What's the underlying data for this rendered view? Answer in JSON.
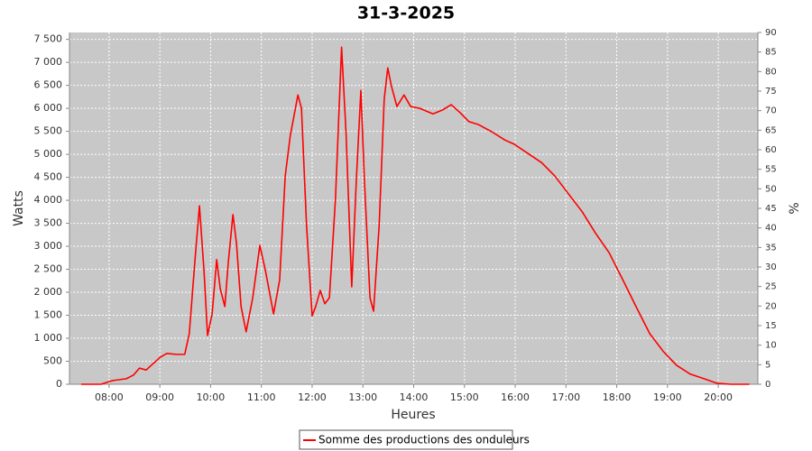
{
  "chart_data": {
    "type": "line",
    "title": "31-3-2025",
    "xlabel": "Heures",
    "ylabel": "Watts",
    "y2label": "%",
    "x": [
      7.45,
      7.84,
      8.07,
      8.34,
      8.48,
      8.6,
      8.73,
      9.01,
      9.14,
      9.32,
      9.49,
      9.58,
      9.69,
      9.78,
      9.87,
      9.94,
      10.03,
      10.12,
      10.19,
      10.28,
      10.35,
      10.44,
      10.51,
      10.6,
      10.7,
      10.83,
      10.97,
      11.08,
      11.24,
      11.36,
      11.47,
      11.57,
      11.72,
      11.79,
      11.89,
      12.0,
      12.07,
      12.16,
      12.25,
      12.34,
      12.46,
      12.58,
      12.67,
      12.78,
      12.87,
      12.96,
      13.03,
      13.14,
      13.21,
      13.32,
      13.42,
      13.49,
      13.56,
      13.67,
      13.81,
      13.94,
      14.12,
      14.38,
      14.56,
      14.74,
      14.92,
      15.09,
      15.27,
      15.54,
      15.8,
      15.98,
      16.25,
      16.52,
      16.78,
      17.05,
      17.32,
      17.58,
      17.85,
      18.12,
      18.38,
      18.65,
      18.92,
      19.18,
      19.45,
      19.72,
      19.98,
      20.25,
      20.61
    ],
    "series": [
      {
        "name": "Somme des productions des onduleurs",
        "color": "#ff0000",
        "values": [
          0,
          0,
          80,
          120,
          200,
          350,
          310,
          590,
          670,
          650,
          650,
          1100,
          2670,
          3880,
          2470,
          1060,
          1530,
          2710,
          2080,
          1690,
          2670,
          3690,
          3060,
          1690,
          1140,
          1880,
          3020,
          2470,
          1530,
          2270,
          4530,
          5410,
          6290,
          6000,
          3450,
          1490,
          1690,
          2040,
          1750,
          1880,
          4040,
          7330,
          5410,
          2120,
          4430,
          6390,
          4430,
          1880,
          1590,
          3450,
          6200,
          6880,
          6490,
          6040,
          6290,
          6040,
          6000,
          5880,
          5960,
          6080,
          5900,
          5710,
          5650,
          5490,
          5310,
          5220,
          5020,
          4820,
          4530,
          4140,
          3750,
          3290,
          2860,
          2270,
          1690,
          1100,
          710,
          410,
          220,
          120,
          20,
          0,
          0
        ]
      }
    ],
    "xlim": [
      7.22,
      20.78
    ],
    "xticks": [
      {
        "value": 8,
        "label": "08:00"
      },
      {
        "value": 9,
        "label": "09:00"
      },
      {
        "value": 10,
        "label": "10:00"
      },
      {
        "value": 11,
        "label": "11:00"
      },
      {
        "value": 12,
        "label": "12:00"
      },
      {
        "value": 13,
        "label": "13:00"
      },
      {
        "value": 14,
        "label": "14:00"
      },
      {
        "value": 15,
        "label": "15:00"
      },
      {
        "value": 16,
        "label": "16:00"
      },
      {
        "value": 17,
        "label": "17:00"
      },
      {
        "value": 18,
        "label": "18:00"
      },
      {
        "value": 19,
        "label": "19:00"
      },
      {
        "value": 20,
        "label": "20:00"
      }
    ],
    "ylim": [
      0,
      7650
    ],
    "yticks": [
      0,
      500,
      {
        "value": 1000,
        "label": "1 000"
      },
      {
        "value": 1500,
        "label": "1 500"
      },
      {
        "value": 2000,
        "label": "2 000"
      },
      {
        "value": 2500,
        "label": "2 500"
      },
      {
        "value": 3000,
        "label": "3 000"
      },
      {
        "value": 3500,
        "label": "3 500"
      },
      {
        "value": 4000,
        "label": "4 000"
      },
      {
        "value": 4500,
        "label": "4 500"
      },
      {
        "value": 5000,
        "label": "5 000"
      },
      {
        "value": 5500,
        "label": "5 500"
      },
      {
        "value": 6000,
        "label": "6 000"
      },
      {
        "value": 6500,
        "label": "6 500"
      },
      {
        "value": 7000,
        "label": "7 000"
      },
      {
        "value": 7500,
        "label": "7 500"
      }
    ],
    "y2lim": [
      0,
      90
    ],
    "y2ticks": [
      0,
      5,
      10,
      15,
      20,
      25,
      30,
      35,
      40,
      45,
      50,
      55,
      60,
      65,
      70,
      75,
      80,
      85,
      90
    ],
    "grid": true
  }
}
